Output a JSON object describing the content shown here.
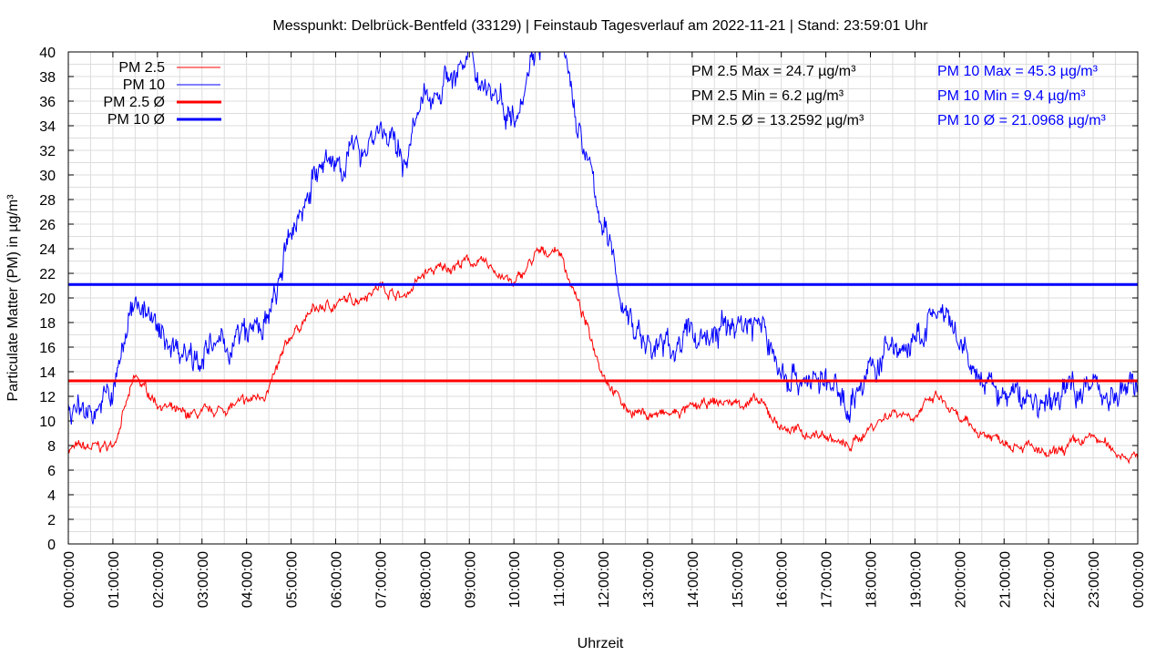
{
  "chart_data": {
    "type": "line",
    "title": "Messpunkt: Delbrück-Bentfeld (33129) | Feinstaub Tagesverlauf am 2022-11-21 | Stand: 23:59:01 Uhr",
    "xlabel": "Uhrzeit",
    "ylabel": "Particulate Matter (PM) in µg/m³",
    "ylim": [
      0,
      40
    ],
    "xlim_hours": [
      0,
      24
    ],
    "grid": true,
    "legend_position": "top-left",
    "y_ticks": [
      "0",
      "2",
      "4",
      "6",
      "8",
      "10",
      "12",
      "14",
      "16",
      "18",
      "20",
      "22",
      "24",
      "26",
      "28",
      "30",
      "32",
      "34",
      "36",
      "38",
      "40"
    ],
    "x_ticks": [
      "00:00:00",
      "01:00:00",
      "02:00:00",
      "03:00:00",
      "04:00:00",
      "05:00:00",
      "06:00:00",
      "07:00:00",
      "08:00:00",
      "09:00:00",
      "10:00:00",
      "11:00:00",
      "12:00:00",
      "13:00:00",
      "14:00:00",
      "15:00:00",
      "16:00:00",
      "17:00:00",
      "18:00:00",
      "19:00:00",
      "20:00:00",
      "21:00:00",
      "22:00:00",
      "23:00:00",
      "00:00:00"
    ],
    "x_hours_step": 0.5,
    "series": [
      {
        "name": "PM 2.5",
        "color": "#ff0000",
        "values": [
          7.8,
          7.8,
          8,
          13.5,
          11.5,
          10.5,
          10.5,
          11,
          11.5,
          12.5,
          17,
          19,
          19.5,
          20,
          21,
          20,
          22,
          22.5,
          23,
          22.5,
          21,
          23.5,
          24,
          19,
          14,
          11,
          10.5,
          10.5,
          11,
          11.5,
          11.5,
          11.5,
          9.5,
          9,
          8.8,
          7.8,
          9.5,
          10.8,
          10.5,
          12,
          10,
          9,
          8.5,
          8,
          7,
          8,
          8.7,
          7.5,
          7
        ]
      },
      {
        "name": "PM 10",
        "color": "#0000ff",
        "values": [
          11,
          11,
          12,
          20.5,
          17,
          16,
          15.5,
          16,
          17,
          18,
          25,
          30,
          31,
          32,
          34,
          31,
          36,
          38,
          39,
          37,
          35,
          41,
          42,
          33,
          26,
          19,
          16,
          16,
          17,
          17,
          18,
          18,
          14,
          13.5,
          13,
          11.5,
          14,
          16,
          16,
          19,
          16,
          13,
          12,
          12,
          11,
          13,
          13,
          12,
          13
        ]
      }
    ],
    "averages": [
      {
        "name": "PM 2.5 Ø",
        "color": "#ff0000",
        "value": 13.2592
      },
      {
        "name": "PM 10 Ø",
        "color": "#0000ff",
        "value": 21.0968
      }
    ],
    "annotations": {
      "pm25": [
        "PM 2.5 Max = 24.7 µg/m³",
        "PM 2.5 Min = 6.2 µg/m³",
        "PM 2.5 Ø = 13.2592 µg/m³"
      ],
      "pm10": [
        "PM 10 Max = 45.3 µg/m³",
        "PM 10 Min = 9.4 µg/m³",
        "PM 10 Ø = 21.0968 µg/m³"
      ]
    }
  }
}
